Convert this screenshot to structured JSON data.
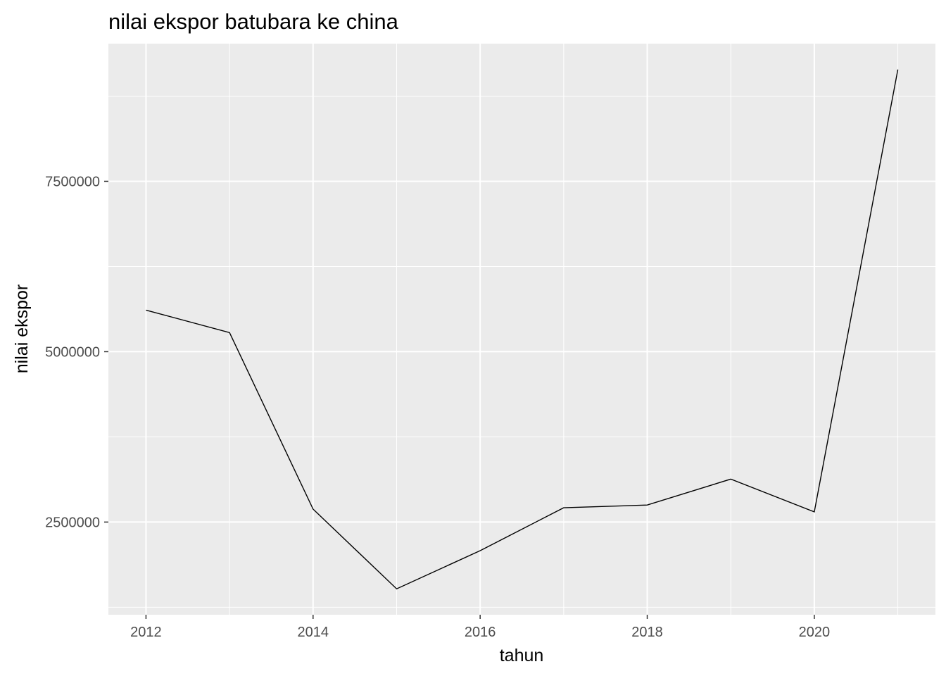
{
  "chart_data": {
    "type": "line",
    "title": "nilai ekspor batubara ke china",
    "xlabel": "tahun",
    "ylabel": "nilai ekspor",
    "x": [
      2012,
      2013,
      2014,
      2015,
      2016,
      2017,
      2018,
      2019,
      2020,
      2021
    ],
    "y": [
      5610000,
      5280000,
      2690000,
      1520000,
      2080000,
      2710000,
      2750000,
      3130000,
      2650000,
      9140000
    ],
    "x_ticks": [
      2012,
      2014,
      2016,
      2018,
      2020
    ],
    "x_tick_labels": [
      "2012",
      "2014",
      "2016",
      "2018",
      "2020"
    ],
    "y_ticks": [
      2500000,
      5000000,
      7500000
    ],
    "y_tick_labels": [
      "2500000",
      "5000000",
      "7500000"
    ],
    "xlim": [
      2011.55,
      2021.45
    ],
    "ylim": [
      1140000,
      9520000
    ],
    "grid": true,
    "legend": "none",
    "colors": {
      "panel_background": "#ebebeb",
      "grid": "#ffffff",
      "line": "#000000",
      "tick_label": "#4d4d4d"
    }
  }
}
